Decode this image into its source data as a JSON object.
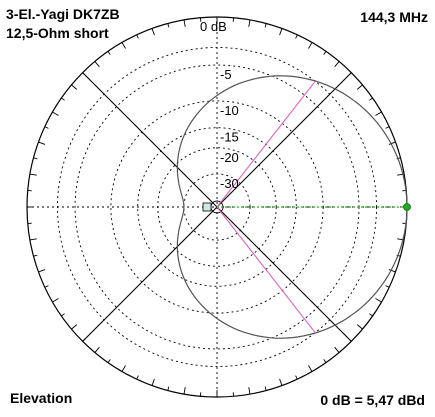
{
  "chart_data": {
    "type": "polar",
    "title_line1": "3-El.-Yagi DK7ZB",
    "title_line2": "12,5-Ohm short",
    "frequency": "144,3 MHz",
    "plane": "Elevation",
    "reference": "0 dB = 5,47 dBd",
    "ring_labels": [
      {
        "db": 0,
        "text": "0 dB"
      },
      {
        "db": -5,
        "text": "-5"
      },
      {
        "db": -10,
        "text": "-10"
      },
      {
        "db": -15,
        "text": "-15"
      },
      {
        "db": -20,
        "text": "-20"
      },
      {
        "db": -30,
        "text": "-30"
      }
    ],
    "ring_db_values": [
      0,
      -3,
      -5,
      -10,
      -15,
      -20,
      -30
    ],
    "pattern": {
      "description_free": true,
      "main_lobe_direction_deg": 0,
      "front_gain_db": 0,
      "back_gain_db": -30,
      "half_power_markers_deg": [
        52,
        -52
      ]
    },
    "colors": {
      "pattern": "#555555",
      "grid": "#000000",
      "direction_marker": "#22aa22",
      "half_power_marker": "#e060c0"
    }
  }
}
